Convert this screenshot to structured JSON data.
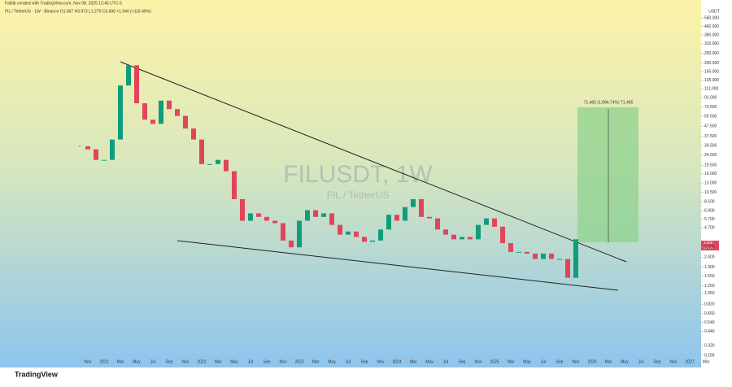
{
  "header": {
    "credit": "Falbib created with TradingView.com, Nov 08, 2025 13:45 UTC-5",
    "legend": "FIL / TetherUS · 1W · Binance  O1.667  H3.973  L1.270  C3.606  +1.940 (+116.45%)",
    "currency": "USDT"
  },
  "watermark": {
    "symbol": "FILUSDT, 1W",
    "name": "FIL / TetherUS"
  },
  "position": {
    "label": "71.465 (1,894.74%) 71,465"
  },
  "price_tag": {
    "price": "3.606",
    "countdown": "1d 10h"
  },
  "footer": {
    "brand": "TradingView"
  },
  "chart_data": {
    "type": "candlestick",
    "log_scale": true,
    "up_color": "#0f9d7a",
    "down_color": "#e0455a",
    "x": [
      "2020-10",
      "2020-11",
      "2020-12",
      "2021-01",
      "2021-02",
      "2021-03",
      "2021-04",
      "2021-05",
      "2021-06",
      "2021-07",
      "2021-08",
      "2021-09",
      "2021-10",
      "2021-11",
      "2021-12",
      "2022-01",
      "2022-02",
      "2022-03",
      "2022-04",
      "2022-05",
      "2022-06",
      "2022-07",
      "2022-08",
      "2022-09",
      "2022-10",
      "2022-11",
      "2022-12",
      "2023-01",
      "2023-02",
      "2023-03",
      "2023-04",
      "2023-05",
      "2023-06",
      "2023-07",
      "2023-08",
      "2023-09",
      "2023-10",
      "2023-11",
      "2023-12",
      "2024-01",
      "2024-02",
      "2024-03",
      "2024-04",
      "2024-05",
      "2024-06",
      "2024-07",
      "2024-08",
      "2024-09",
      "2024-10",
      "2024-11",
      "2024-12",
      "2025-01",
      "2025-02",
      "2025-03",
      "2025-04",
      "2025-05",
      "2025-06",
      "2025-07",
      "2025-08",
      "2025-09",
      "2025-10",
      "2025-11"
    ],
    "closes": [
      30,
      28,
      22,
      22,
      35,
      120,
      190,
      80,
      55,
      50,
      85,
      70,
      60,
      45,
      35,
      20,
      20,
      22,
      17,
      9,
      5.5,
      6.5,
      6,
      5.5,
      5.2,
      3.5,
      3,
      5.5,
      7,
      6,
      6.5,
      5,
      4,
      4.3,
      3.8,
      3.4,
      3.5,
      4.5,
      6.3,
      5.5,
      7.5,
      9,
      6,
      5.8,
      4.5,
      4,
      3.6,
      3.8,
      3.6,
      5,
      5.8,
      4.8,
      3.3,
      2.7,
      2.7,
      2.6,
      2.3,
      2.6,
      2.3,
      2.3,
      1.5,
      3.606
    ],
    "ylim": [
      0.256,
      560
    ],
    "yticks": [
      {
        "value": 0.256,
        "label": "0.256"
      },
      {
        "value": 0.32,
        "label": "0.320"
      },
      {
        "value": 0.44,
        "label": "0.440"
      },
      {
        "value": 0.54,
        "label": "0.540"
      },
      {
        "value": 0.66,
        "label": "0.660"
      },
      {
        "value": 0.82,
        "label": "0.820"
      },
      {
        "value": 1.05,
        "label": "1.050"
      },
      {
        "value": 1.25,
        "label": "1.250"
      },
      {
        "value": 1.55,
        "label": "1.550"
      },
      {
        "value": 1.9,
        "label": "1.900"
      },
      {
        "value": 2.4,
        "label": "2.400"
      },
      {
        "value": 3,
        "label": "3.000"
      },
      {
        "value": 4.7,
        "label": "4.700"
      },
      {
        "value": 5.7,
        "label": "5.700"
      },
      {
        "value": 6.9,
        "label": "6.900"
      },
      {
        "value": 8.5,
        "label": "8.500"
      },
      {
        "value": 10.5,
        "label": "10.500"
      },
      {
        "value": 13,
        "label": "13.000"
      },
      {
        "value": 16,
        "label": "16.000"
      },
      {
        "value": 19.5,
        "label": "19.500"
      },
      {
        "value": 24.5,
        "label": "24.500"
      },
      {
        "value": 30.5,
        "label": "30.500"
      },
      {
        "value": 37.5,
        "label": "37.500"
      },
      {
        "value": 47.5,
        "label": "47.500"
      },
      {
        "value": 59.5,
        "label": "59.500"
      },
      {
        "value": 73.5,
        "label": "73.500"
      },
      {
        "value": 91,
        "label": "91.000"
      },
      {
        "value": 111,
        "label": "111.000"
      },
      {
        "value": 135,
        "label": "135.000"
      },
      {
        "value": 165,
        "label": "165.000"
      },
      {
        "value": 200,
        "label": "200.000"
      },
      {
        "value": 250,
        "label": "250.000"
      },
      {
        "value": 310,
        "label": "310.000"
      },
      {
        "value": 380,
        "label": "380.000"
      },
      {
        "value": 460,
        "label": "460.000"
      },
      {
        "value": 560,
        "label": "560.000"
      }
    ],
    "xticks": [
      {
        "value": "2020-11",
        "label": "Nov"
      },
      {
        "value": "2021-01",
        "label": "2021"
      },
      {
        "value": "2021-03",
        "label": "Mar"
      },
      {
        "value": "2021-05",
        "label": "May"
      },
      {
        "value": "2021-07",
        "label": "Jul"
      },
      {
        "value": "2021-09",
        "label": "Sep"
      },
      {
        "value": "2021-11",
        "label": "Nov"
      },
      {
        "value": "2022-01",
        "label": "2022"
      },
      {
        "value": "2022-03",
        "label": "Mar"
      },
      {
        "value": "2022-05",
        "label": "May"
      },
      {
        "value": "2022-07",
        "label": "Jul"
      },
      {
        "value": "2022-09",
        "label": "Sep"
      },
      {
        "value": "2022-11",
        "label": "Nov"
      },
      {
        "value": "2023-01",
        "label": "2023"
      },
      {
        "value": "2023-03",
        "label": "Mar"
      },
      {
        "value": "2023-05",
        "label": "May"
      },
      {
        "value": "2023-07",
        "label": "Jul"
      },
      {
        "value": "2023-09",
        "label": "Sep"
      },
      {
        "value": "2023-11",
        "label": "Nov"
      },
      {
        "value": "2024-01",
        "label": "2024"
      },
      {
        "value": "2024-03",
        "label": "Mar"
      },
      {
        "value": "2024-05",
        "label": "May"
      },
      {
        "value": "2024-07",
        "label": "Jul"
      },
      {
        "value": "2024-09",
        "label": "Sep"
      },
      {
        "value": "2024-11",
        "label": "Nov"
      },
      {
        "value": "2025-01",
        "label": "2025"
      },
      {
        "value": "2025-03",
        "label": "Mar"
      },
      {
        "value": "2025-05",
        "label": "May"
      },
      {
        "value": "2025-07",
        "label": "Jul"
      },
      {
        "value": "2025-09",
        "label": "Sep"
      },
      {
        "value": "2025-11",
        "label": "Nov"
      },
      {
        "value": "2026-01",
        "label": "2026"
      },
      {
        "value": "2026-03",
        "label": "Mar"
      },
      {
        "value": "2026-05",
        "label": "May"
      },
      {
        "value": "2026-07",
        "label": "Jul"
      },
      {
        "value": "2026-09",
        "label": "Sep"
      },
      {
        "value": "2026-11",
        "label": "Nov"
      },
      {
        "value": "2027-01",
        "label": "2027"
      },
      {
        "value": "2027-03",
        "label": "Mar"
      }
    ]
  }
}
